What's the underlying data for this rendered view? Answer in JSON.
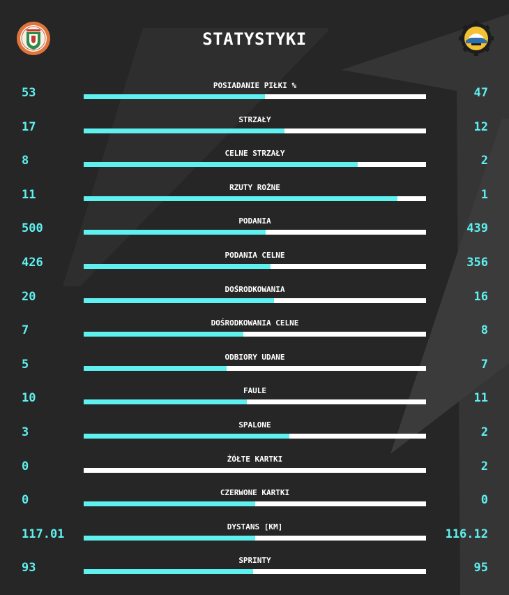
{
  "title": "STATYSTYKI",
  "teams": {
    "home": {
      "crest_icon": "zaglebie-lubin-crest-icon",
      "color": "#e0743a"
    },
    "away": {
      "crest_icon": "stal-mielec-crest-icon",
      "color": "#f2c232"
    }
  },
  "colors": {
    "accent": "#5ff0f0",
    "bar_bg": "#ffffff",
    "background": "#262626"
  },
  "chart_data": {
    "type": "bar",
    "title": "STATYSTYKI",
    "series": [
      {
        "values": [
          53,
          17,
          8,
          11,
          500,
          426,
          20,
          7,
          5,
          10,
          3,
          0,
          0,
          117.01,
          93
        ]
      },
      {
        "values": [
          47,
          12,
          2,
          1,
          439,
          356,
          16,
          8,
          7,
          11,
          2,
          2,
          0,
          116.12,
          95
        ]
      }
    ],
    "stats": [
      {
        "label": "POSIADANIE PIŁKI %",
        "home": "53",
        "away": "47",
        "home_share": 0.53
      },
      {
        "label": "STRZAŁY",
        "home": "17",
        "away": "12",
        "home_share": 0.586
      },
      {
        "label": "CELNE STRZAŁY",
        "home": "8",
        "away": "2",
        "home_share": 0.8
      },
      {
        "label": "RZUTY ROŻNE",
        "home": "11",
        "away": "1",
        "home_share": 0.917
      },
      {
        "label": "PODANIA",
        "home": "500",
        "away": "439",
        "home_share": 0.532
      },
      {
        "label": "PODANIA CELNE",
        "home": "426",
        "away": "356",
        "home_share": 0.545
      },
      {
        "label": "DOŚRODKOWANIA",
        "home": "20",
        "away": "16",
        "home_share": 0.556
      },
      {
        "label": "DOŚRODKOWANIA CELNE",
        "home": "7",
        "away": "8",
        "home_share": 0.467
      },
      {
        "label": "ODBIORY UDANE",
        "home": "5",
        "away": "7",
        "home_share": 0.417
      },
      {
        "label": "FAULE",
        "home": "10",
        "away": "11",
        "home_share": 0.476
      },
      {
        "label": "SPALONE",
        "home": "3",
        "away": "2",
        "home_share": 0.6
      },
      {
        "label": "ŻÓŁTE KARTKI",
        "home": "0",
        "away": "2",
        "home_share": 0
      },
      {
        "label": "CZERWONE KARTKI",
        "home": "0",
        "away": "0",
        "home_share": 0.5
      },
      {
        "label": "DYSTANS [KM]",
        "home": "117.01",
        "away": "116.12",
        "home_share": 0.502
      },
      {
        "label": "SPRINTY",
        "home": "93",
        "away": "95",
        "home_share": 0.495
      }
    ]
  }
}
